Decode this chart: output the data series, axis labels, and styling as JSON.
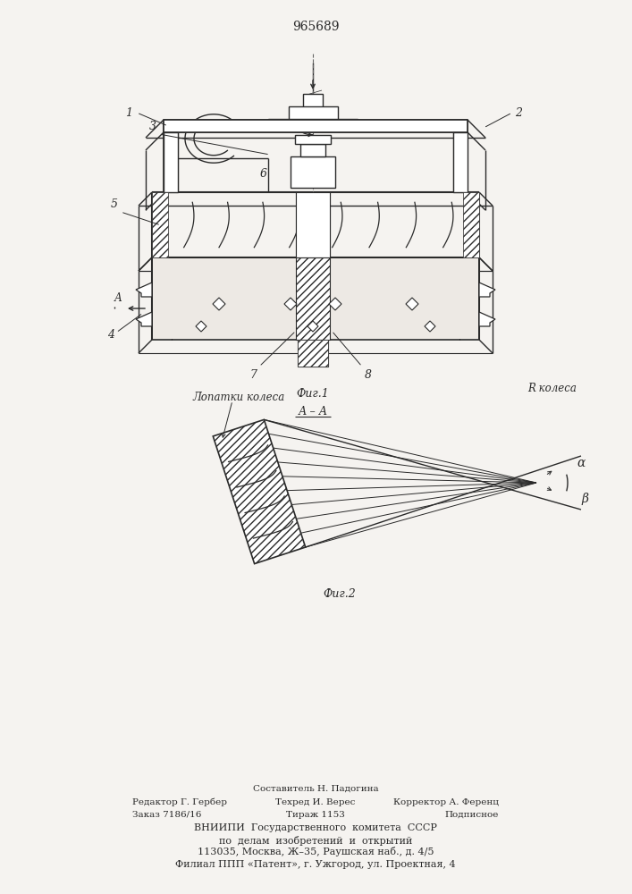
{
  "title": "965689",
  "bg_color": "#f5f3f0",
  "line_color": "#2a2a2a",
  "font_size_title": 10,
  "font_size_label": 9,
  "font_size_num": 9,
  "bottom_text": [
    [
      "center",
      353,
      118,
      "Составитель Н. Падогина",
      7.5
    ],
    [
      "left",
      148,
      103,
      "Редактор Г. Гербер",
      7.5
    ],
    [
      "center",
      353,
      103,
      "Техред И. Верес",
      7.5
    ],
    [
      "right",
      558,
      103,
      "Корректор А. Ференц",
      7.5
    ],
    [
      "left",
      148,
      89,
      "Заказ 7186/16",
      7.5
    ],
    [
      "center",
      353,
      89,
      "Тираж 1153",
      7.5
    ],
    [
      "right",
      558,
      89,
      "Подписное",
      7.5
    ],
    [
      "center",
      353,
      74,
      "ВНИИПИ  Государственного  комитета  СССР",
      8
    ],
    [
      "center",
      353,
      60,
      "по  делам  изобретений  и  открытий",
      8
    ],
    [
      "center",
      353,
      47,
      "113035, Москва, Ж–35, Раушская наб., д. 4/5",
      8
    ],
    [
      "center",
      353,
      33,
      "Филиал ППП «Патент», г. Ужгород, ул. Проектная, 4",
      8
    ]
  ]
}
